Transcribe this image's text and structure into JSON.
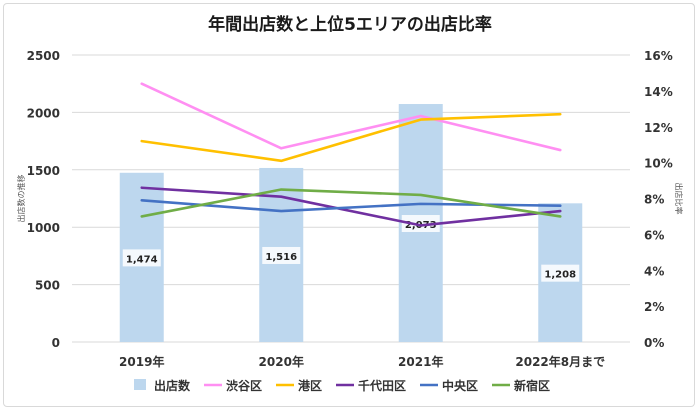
{
  "chart_data": {
    "type": "bar+line",
    "title": "年間出店数と上位5エリアの出店比率",
    "categories": [
      "2019年",
      "2020年",
      "2021年",
      "2022年8月まで"
    ],
    "left_axis": {
      "label": "出店数の推移",
      "min": 0,
      "max": 2500,
      "step": 500,
      "ticks": [
        "0",
        "500",
        "1000",
        "1500",
        "2000",
        "2500"
      ]
    },
    "right_axis": {
      "label": "出店比率",
      "min": 0,
      "max": 16,
      "step": 2,
      "ticks": [
        "0%",
        "2%",
        "4%",
        "6%",
        "8%",
        "10%",
        "12%",
        "14%",
        "16%"
      ]
    },
    "bars": {
      "name": "出店数",
      "color": "#bdd7ee",
      "values": [
        1474,
        1516,
        2073,
        1208
      ],
      "labels": [
        "1,474",
        "1,516",
        "2,073",
        "1,208"
      ]
    },
    "series": [
      {
        "name": "渋谷区",
        "color": "#ff8ff2",
        "values": [
          14.4,
          10.8,
          12.6,
          10.7
        ]
      },
      {
        "name": "港区",
        "color": "#ffc000",
        "values": [
          11.2,
          10.1,
          12.4,
          12.7
        ]
      },
      {
        "name": "千代田区",
        "color": "#7030a0",
        "values": [
          8.6,
          8.1,
          6.5,
          7.3
        ]
      },
      {
        "name": "中央区",
        "color": "#4472c4",
        "values": [
          7.9,
          7.3,
          7.7,
          7.6
        ]
      },
      {
        "name": "新宿区",
        "color": "#70ad47",
        "values": [
          7.0,
          8.5,
          8.2,
          7.0
        ]
      }
    ],
    "legend_position": "bottom",
    "grid": true
  }
}
